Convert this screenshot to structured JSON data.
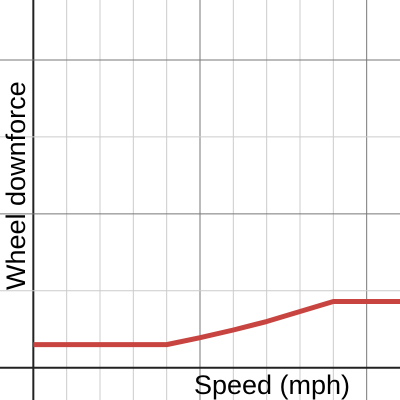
{
  "chart_data": {
    "type": "line",
    "x_label": "Speed (mph)",
    "y_label": "Wheel downforce",
    "x": [
      0,
      4,
      5,
      6,
      7,
      8,
      9,
      11
    ],
    "series": [
      {
        "color": "#c74440",
        "values": [
          0.3,
          0.3,
          0.39,
          0.49,
          0.6,
          0.73,
          0.86,
          0.86
        ]
      }
    ],
    "xlim": [
      -1,
      11
    ],
    "ylim": [
      -0.42,
      4.78
    ],
    "xticks": [
      0,
      1,
      2,
      3,
      4,
      5,
      6,
      7,
      8,
      9,
      10
    ],
    "yticks": [
      0,
      1,
      2,
      3,
      4
    ],
    "grid": true
  }
}
